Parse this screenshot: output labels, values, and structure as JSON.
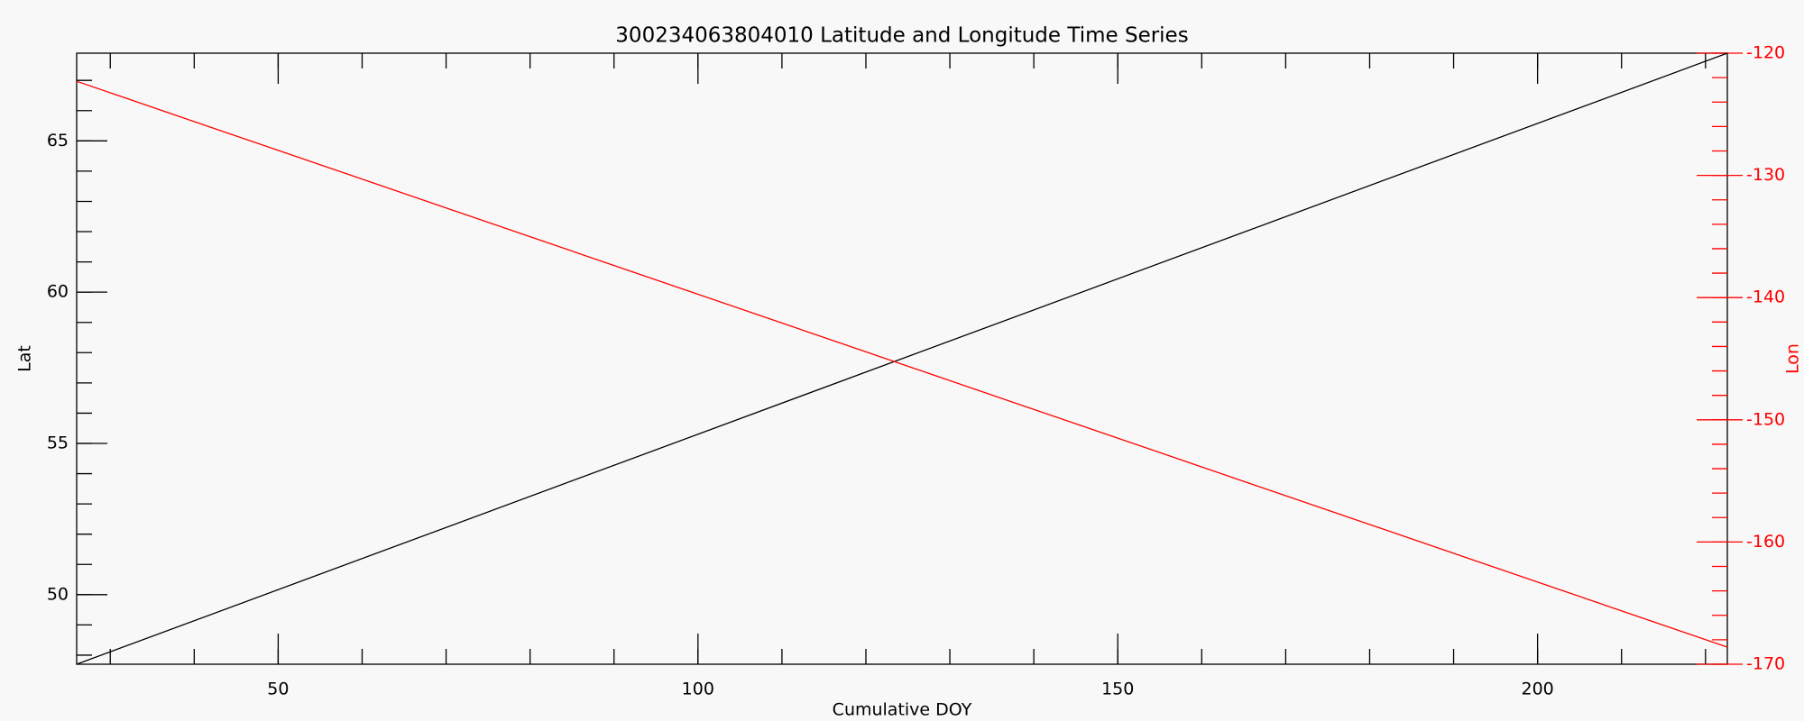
{
  "chart_data": {
    "type": "line",
    "title": "300234063804010 Latitude and Longitude Time Series",
    "xlabel": "Cumulative DOY",
    "ylabel": "Lat",
    "y2label": "Lon",
    "x": [
      26,
      222.6
    ],
    "series": [
      {
        "color": "#000000",
        "values": [
          47.7,
          67.9
        ]
      },
      {
        "color": "#ff0000",
        "axis": "y2",
        "values": [
          -122.3,
          -168.6
        ]
      }
    ],
    "xlim": [
      26,
      222.6
    ],
    "xticks": [
      50,
      100,
      150,
      200
    ],
    "ylim": [
      47.7,
      67.9
    ],
    "yticks": [
      50,
      55,
      60,
      65
    ],
    "y2lim": [
      -170,
      -120
    ],
    "y2ticks": [
      -170,
      -160,
      -150,
      -140,
      -130,
      -120
    ],
    "y2color": "#ff0000"
  }
}
